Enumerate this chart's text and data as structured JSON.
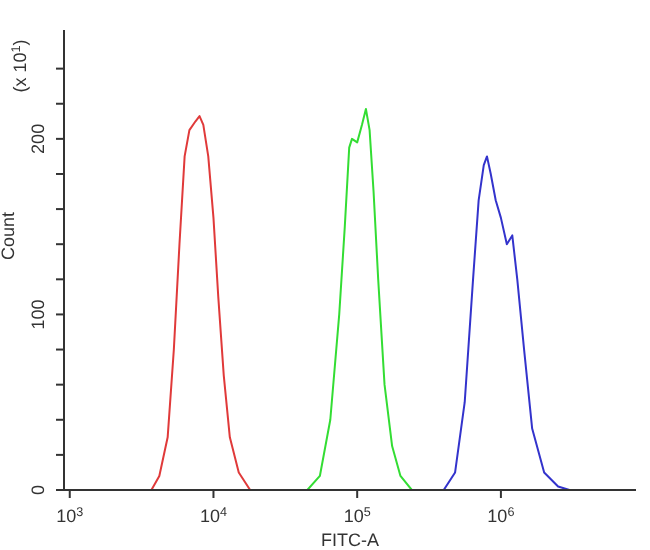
{
  "chart_data": {
    "type": "line",
    "xlabel": "FITC-A",
    "ylabel": "Count",
    "annotations": [
      "(x 10$^{1}$)"
    ],
    "log": "x",
    "xlim": [
      912,
      8710000
    ],
    "ylim": [
      0,
      262
    ],
    "xticks": [
      {
        "value": 1000,
        "label": "10$^{3}$"
      },
      {
        "value": 10000,
        "label": "10$^{4}$"
      },
      {
        "value": 100000,
        "label": "10$^{5}$"
      },
      {
        "value": 1000000,
        "label": "10$^{6}$"
      }
    ],
    "yticks": [
      0,
      {
        "value": 20,
        "label": null
      },
      {
        "value": 40,
        "label": null
      },
      {
        "value": 60,
        "label": null
      },
      {
        "value": 80,
        "label": null
      },
      100,
      {
        "value": 120,
        "label": null
      },
      {
        "value": 140,
        "label": null
      },
      {
        "value": 160,
        "label": null
      },
      {
        "value": 180,
        "label": null
      },
      200,
      {
        "value": 220,
        "label": null
      },
      {
        "value": 240,
        "label": null
      }
    ],
    "marker": "none",
    "line_style": "solid",
    "series": [
      {
        "color": "#e03a3a",
        "x": [
          3700,
          4200,
          4800,
          5300,
          5800,
          6300,
          6800,
          7500,
          8000,
          8500,
          9200,
          10000,
          10800,
          11800,
          13000,
          15000,
          18000
        ],
        "values": [
          0,
          8,
          30,
          80,
          140,
          190,
          205,
          210,
          213,
          208,
          190,
          155,
          110,
          65,
          30,
          10,
          0
        ]
      },
      {
        "color": "#33dd33",
        "x": [
          45000,
          55000,
          65000,
          75000,
          82000,
          88000,
          92000,
          100000,
          108000,
          115000,
          122000,
          130000,
          140000,
          155000,
          175000,
          200000,
          240000
        ],
        "values": [
          0,
          8,
          40,
          100,
          150,
          195,
          200,
          198,
          208,
          217,
          205,
          170,
          120,
          60,
          25,
          8,
          0
        ]
      },
      {
        "color": "#3333cc",
        "x": [
          400000,
          480000,
          560000,
          640000,
          700000,
          760000,
          800000,
          850000,
          920000,
          1000000,
          1100000,
          1200000,
          1300000,
          1450000,
          1650000,
          2000000,
          2500000,
          3000000
        ],
        "values": [
          0,
          10,
          50,
          120,
          165,
          185,
          190,
          180,
          165,
          155,
          140,
          145,
          120,
          80,
          35,
          10,
          2,
          0
        ]
      }
    ]
  }
}
